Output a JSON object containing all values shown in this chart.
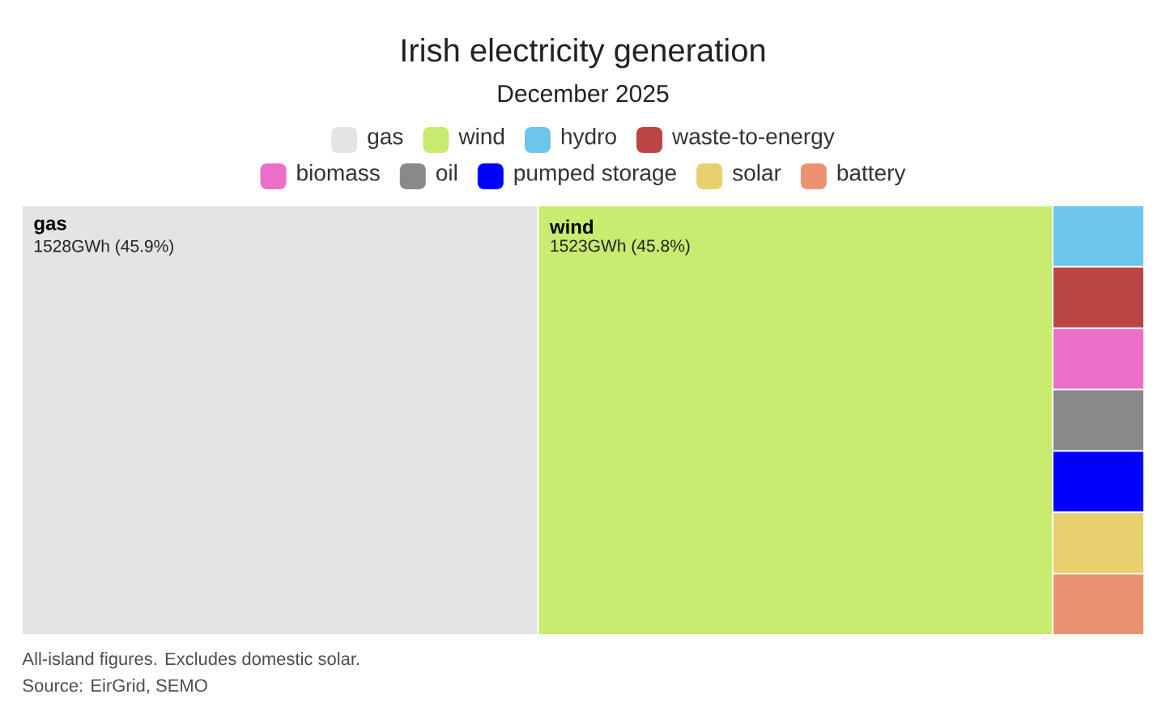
{
  "chart_data": {
    "type": "other",
    "title": "Irish electricity generation",
    "subtitle": "December 2025",
    "categories": [
      "gas",
      "wind",
      "hydro",
      "waste-to-energy",
      "biomass",
      "oil",
      "pumped storage",
      "solar",
      "battery"
    ],
    "values": [
      1528,
      1523,
      null,
      null,
      null,
      null,
      null,
      null,
      null
    ],
    "value_labels": [
      "1528GWh (45.9%)",
      "1523GWh (45.8%)",
      null,
      null,
      null,
      null,
      null,
      null,
      null
    ],
    "colors": [
      "#e4e4e4",
      "#c9eb70",
      "#6cc5ea",
      "#bb4545",
      "#ec6fc7",
      "#898989",
      "#0000ff",
      "#e8d06e",
      "#ec9270"
    ],
    "annotations": [
      "All-island figures. Excludes domestic solar.",
      "Source: EirGrid, SEMO"
    ]
  }
}
